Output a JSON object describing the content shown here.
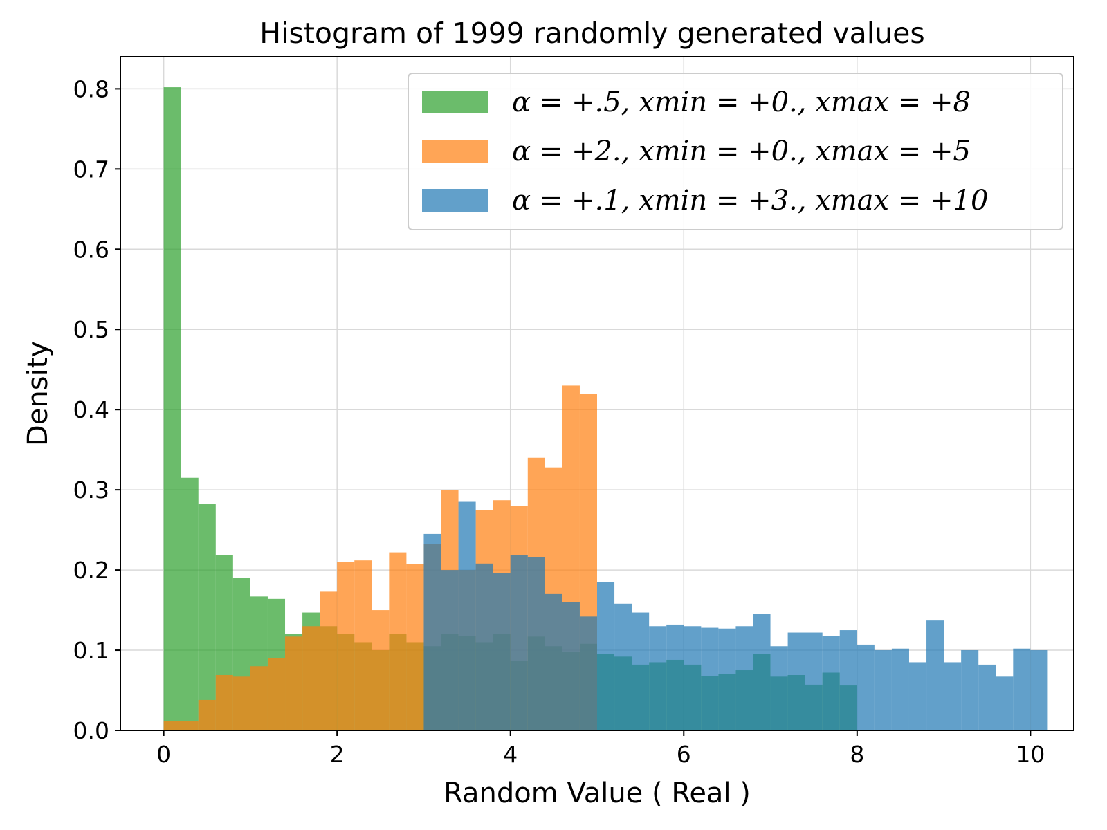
{
  "chart_data": {
    "type": "histogram",
    "title": "Histogram of 1999 randomly generated values",
    "xlabel": "Random Value ( Real )",
    "ylabel": "Density",
    "xlim": [
      -0.5,
      10.5
    ],
    "ylim": [
      0,
      0.84
    ],
    "xticks": [
      0,
      2,
      4,
      6,
      8,
      10
    ],
    "xtick_labels": [
      "0",
      "2",
      "4",
      "6",
      "8",
      "10"
    ],
    "yticks": [
      0.0,
      0.1,
      0.2,
      0.3,
      0.4,
      0.5,
      0.6,
      0.7,
      0.8
    ],
    "ytick_labels": [
      "0.0",
      "0.1",
      "0.2",
      "0.3",
      "0.4",
      "0.5",
      "0.6",
      "0.7",
      "0.8"
    ],
    "grid": true,
    "legend_position": "top-right",
    "bin_width": 0.2,
    "series": [
      {
        "name": "α = +.5, x_min = +0., x_max = +8",
        "legend_text": "α = +.5, xmin = +0., xmax = +8",
        "color": "#2ca02c",
        "x_start": 0,
        "values": [
          0.802,
          0.315,
          0.282,
          0.219,
          0.19,
          0.167,
          0.164,
          0.12,
          0.147,
          0.13,
          0.12,
          0.11,
          0.1,
          0.12,
          0.11,
          0.105,
          0.12,
          0.118,
          0.11,
          0.12,
          0.087,
          0.117,
          0.105,
          0.098,
          0.108,
          0.095,
          0.092,
          0.082,
          0.085,
          0.088,
          0.082,
          0.068,
          0.07,
          0.075,
          0.095,
          0.067,
          0.069,
          0.057,
          0.072,
          0.056
        ]
      },
      {
        "name": "α = +2., x_min = +0., x_max = +5",
        "legend_text": "α = +2., xmin = +0., xmax = +5",
        "color": "#ff7f0e",
        "x_start": 0,
        "values": [
          0.012,
          0.012,
          0.038,
          0.069,
          0.067,
          0.08,
          0.09,
          0.117,
          0.13,
          0.173,
          0.21,
          0.212,
          0.15,
          0.222,
          0.207,
          0.232,
          0.3,
          0.2,
          0.275,
          0.287,
          0.28,
          0.34,
          0.328,
          0.43,
          0.42
        ]
      },
      {
        "name": "α = +.1, x_min = +3., x_max = +10",
        "legend_text": "α = +.1, xmin = +3., xmax = +10",
        "color": "#1f77b4",
        "x_start": 3,
        "values": [
          0.245,
          0.2,
          0.285,
          0.208,
          0.196,
          0.219,
          0.216,
          0.17,
          0.16,
          0.142,
          0.185,
          0.158,
          0.147,
          0.13,
          0.132,
          0.13,
          0.128,
          0.127,
          0.13,
          0.145,
          0.105,
          0.122,
          0.122,
          0.118,
          0.125,
          0.107,
          0.1,
          0.102,
          0.085,
          0.137,
          0.085,
          0.1,
          0.082,
          0.067,
          0.102,
          0.1
        ]
      }
    ]
  }
}
